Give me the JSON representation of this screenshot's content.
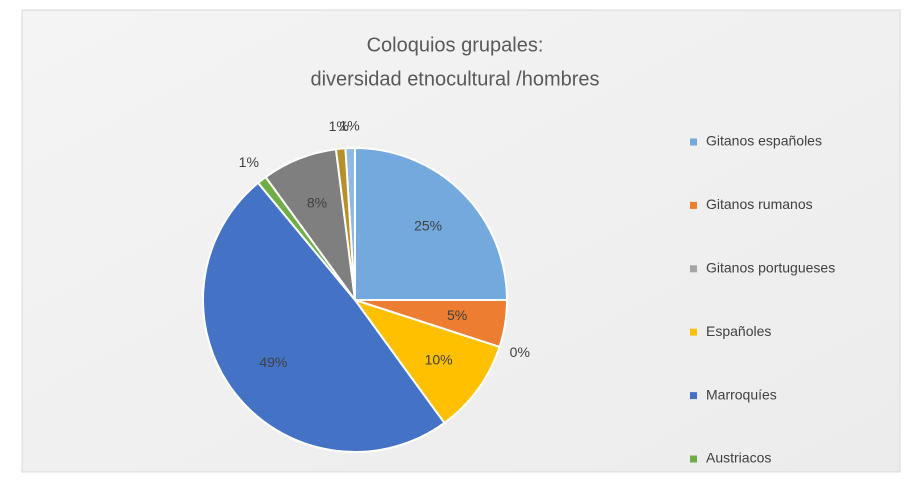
{
  "chart_data": {
    "type": "pie",
    "title": [
      "Coloquios grupales:",
      "diversidad etnocultural /hombres"
    ],
    "categories": [
      "Gitanos españoles",
      "Gitanos rumanos",
      "Gitanos portugueses",
      "Españoles",
      "Marroquíes",
      "Austriacos",
      null,
      null,
      null
    ],
    "values": [
      25,
      5,
      0,
      10,
      49,
      1,
      8,
      1,
      1
    ],
    "value_labels": [
      "25%",
      "5%",
      "0%",
      "10%",
      "49%",
      "1%",
      "8%",
      "1%",
      "1%"
    ],
    "colors": [
      "#74a9de",
      "#ed7d31",
      "#a5a5a5",
      "#ffc000",
      "#4472c4",
      "#70ad47",
      "#7f7f7f",
      "#b8902a",
      "#8fb8e3"
    ],
    "legend": "right"
  }
}
